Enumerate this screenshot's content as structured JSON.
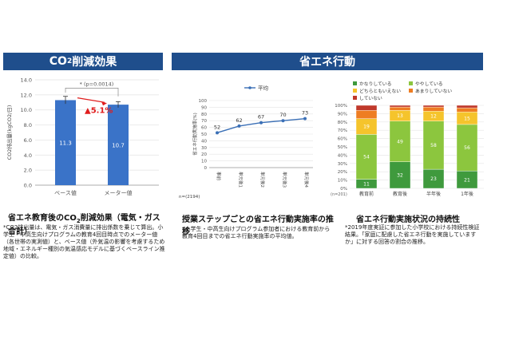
{
  "banners": {
    "left": {
      "pre": "CO",
      "sub": "2",
      "post": "削減効果"
    },
    "right": "省エネ行動"
  },
  "chart_data": [
    {
      "type": "bar",
      "categories": [
        "ベース値",
        "メーター値"
      ],
      "values": [
        11.3,
        10.7
      ],
      "errors": [
        0.5,
        0.4
      ],
      "value_labels": [
        "11.3",
        "10.7"
      ],
      "ylim": [
        0,
        14
      ],
      "yticks": [
        "0.0",
        "2.0",
        "4.0",
        "6.0",
        "8.0",
        "10.0",
        "12.0",
        "14.0"
      ],
      "ylabel": "CO2排出量(kgCO2/日)",
      "annotation": "* (p=0.0014)",
      "change_label": "▲5.1%",
      "bar_color": "#3a73c8"
    },
    {
      "type": "line",
      "categories": [
        "事前",
        "単元後1",
        "単元後2",
        "単元後3",
        "単元後4"
      ],
      "values": [
        52,
        62,
        67,
        70,
        73
      ],
      "value_labels": [
        "52",
        "62",
        "67",
        "70",
        "73"
      ],
      "ylim": [
        0,
        100
      ],
      "yticks": [
        "0",
        "10",
        "20",
        "30",
        "40",
        "50",
        "60",
        "70",
        "80",
        "90",
        "100"
      ],
      "ylabel": "省エネ行動実施率(%)",
      "legend": "平均",
      "n_label": "n=(2194)",
      "line_color": "#3a6fb6"
    },
    {
      "type": "bar",
      "stacked": true,
      "categories": [
        "教育前",
        "教育後",
        "半年後",
        "1年後"
      ],
      "n_label": "(n=201)",
      "ylim": [
        0,
        100
      ],
      "yticks": [
        "0%",
        "10%",
        "20%",
        "30%",
        "40%",
        "50%",
        "60%",
        "70%",
        "80%",
        "90%",
        "100%"
      ],
      "series": [
        {
          "name": "かなりしている",
          "color": "#3f9a3d",
          "values": [
            11,
            32,
            23,
            21
          ]
        },
        {
          "name": "ややしている",
          "color": "#8cc63e",
          "values": [
            54,
            49,
            58,
            56
          ]
        },
        {
          "name": "どちらともいえない",
          "color": "#f5c42c",
          "values": [
            19,
            13,
            12,
            15
          ]
        },
        {
          "name": "あまりしていない",
          "color": "#ee7d22",
          "values": [
            10,
            4,
            5,
            5
          ]
        },
        {
          "name": "していない",
          "color": "#c0392b",
          "values": [
            6,
            2,
            2,
            3
          ]
        }
      ],
      "value_labels": [
        [
          "11",
          "32",
          "23",
          "21"
        ],
        [
          "54",
          "49",
          "58",
          "56"
        ],
        [
          "19",
          "13",
          "12",
          "15"
        ],
        [
          "",
          "",
          "",
          ""
        ],
        [
          "",
          "",
          "",
          ""
        ]
      ]
    }
  ],
  "captions": {
    "left": {
      "title_pre": "省エネ教育後のCO",
      "title_sub": "2",
      "title_post": "削減効果（電気・ガス合計）",
      "note": "*CO2排出量は、電気・ガス消費量に排出係数を乗じて算出。小学生・中高生向けプログラムの教育4回目時点でのメーター値（各世帯の実測値）と、ベース値（外気温の影響を考慮するため地域・エネルギー種別の気温感応モデルに基づくベースライン推定値）の比較。"
    },
    "middle": {
      "title": "授業ステップごとの省エネ行動実施率の推移",
      "note": "*小学生・中高生向けプログラム参加者における教育前から教育4回目までの省エネ行動実施率の平均値。"
    },
    "right": {
      "title": "省エネ行動実施状況の持続性",
      "note": "*2019年度実証に参加した小学校における持続性検証結果。「家庭に配慮した省エネ行動を実施していますか」に対する回答の割合の推移。"
    }
  }
}
